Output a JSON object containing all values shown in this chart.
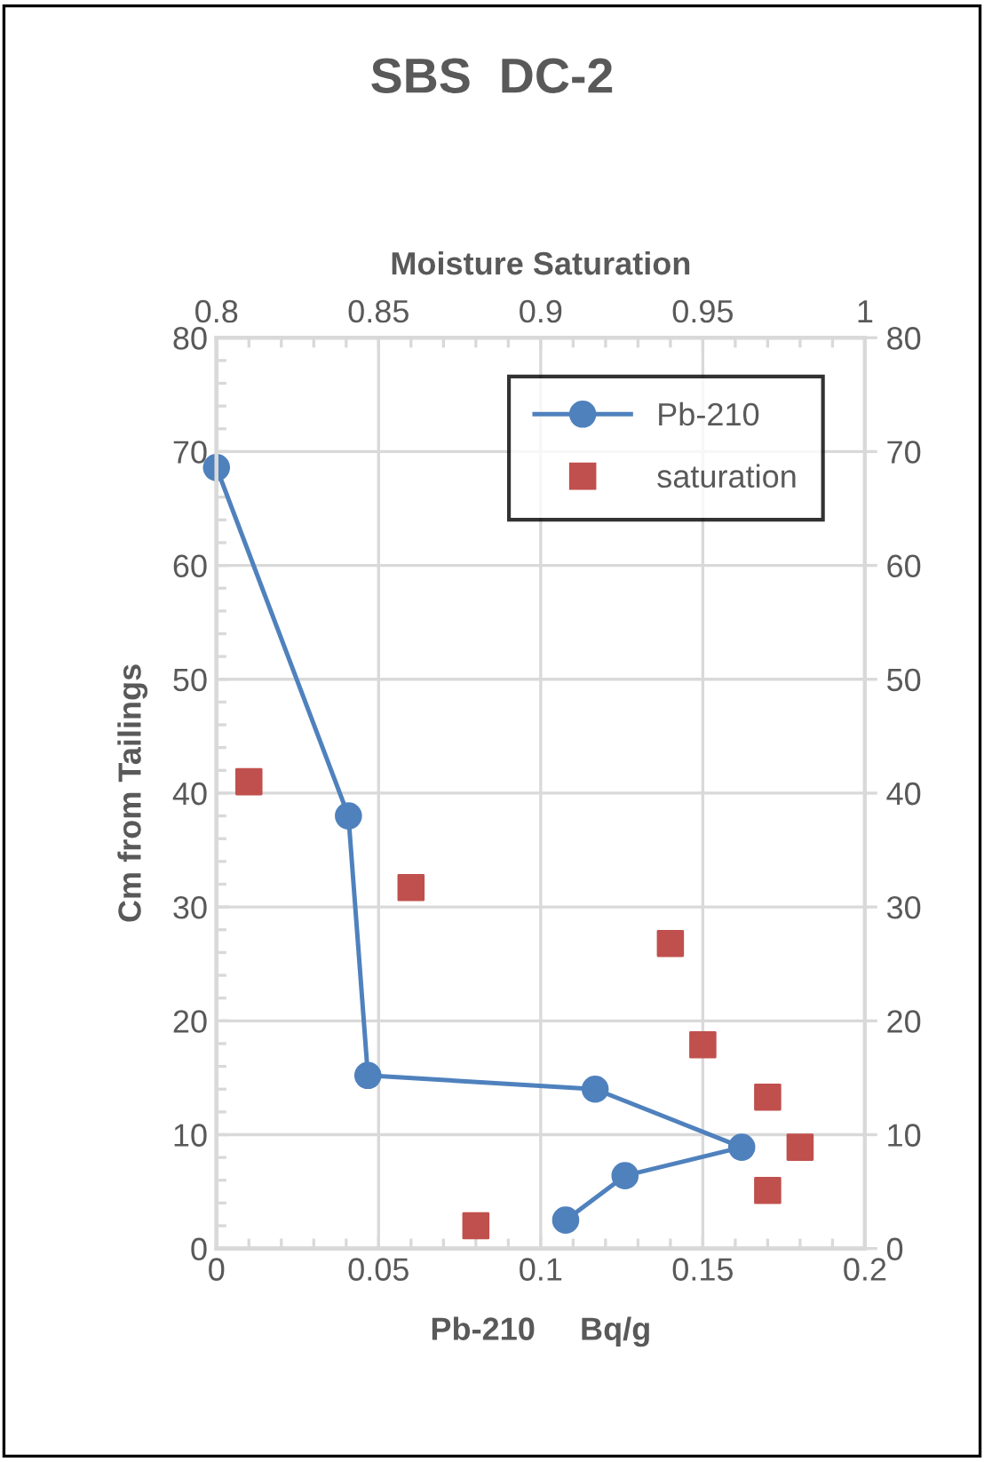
{
  "chart_data": {
    "type": "line",
    "title": "SBS  DC-2",
    "xlabel": "Pb-210     Bq/g",
    "x2label": "Moisture Saturation",
    "ylabel": "Cm from Tailings",
    "xlim": [
      0,
      0.2
    ],
    "xticks": [
      0,
      0.05,
      0.1,
      0.15,
      0.2
    ],
    "x2lim": [
      0.8,
      1
    ],
    "x2ticks": [
      0.8,
      0.85,
      0.9,
      0.95,
      1
    ],
    "ylim": [
      0,
      80
    ],
    "yticks": [
      0,
      10,
      20,
      30,
      40,
      50,
      60,
      70,
      80
    ],
    "y2lim": [
      0,
      80
    ],
    "y2ticks": [
      0,
      10,
      20,
      30,
      40,
      50,
      60,
      70,
      80
    ],
    "grid": true,
    "legend": "top right",
    "series": [
      {
        "name": "Pb-210",
        "color": "#4f81bd",
        "marker": "circle",
        "line_style": "solid",
        "x": [
          0,
          0.0407,
          0.0467,
          0.1168,
          0.162,
          0.126,
          0.1077
        ],
        "values": [
          68.6,
          38.0,
          15.2,
          14.0,
          8.9,
          6.4,
          2.5
        ]
      },
      {
        "name": "saturation",
        "type": "scatter",
        "axis": "x2",
        "color": "#c0504d",
        "marker": "square",
        "x": [
          0.81,
          0.86,
          0.94,
          0.95,
          0.97,
          0.98,
          0.97,
          0.88
        ],
        "values": [
          41.0,
          31.7,
          26.8,
          17.9,
          13.3,
          8.9,
          5.1,
          2.0
        ]
      }
    ]
  }
}
